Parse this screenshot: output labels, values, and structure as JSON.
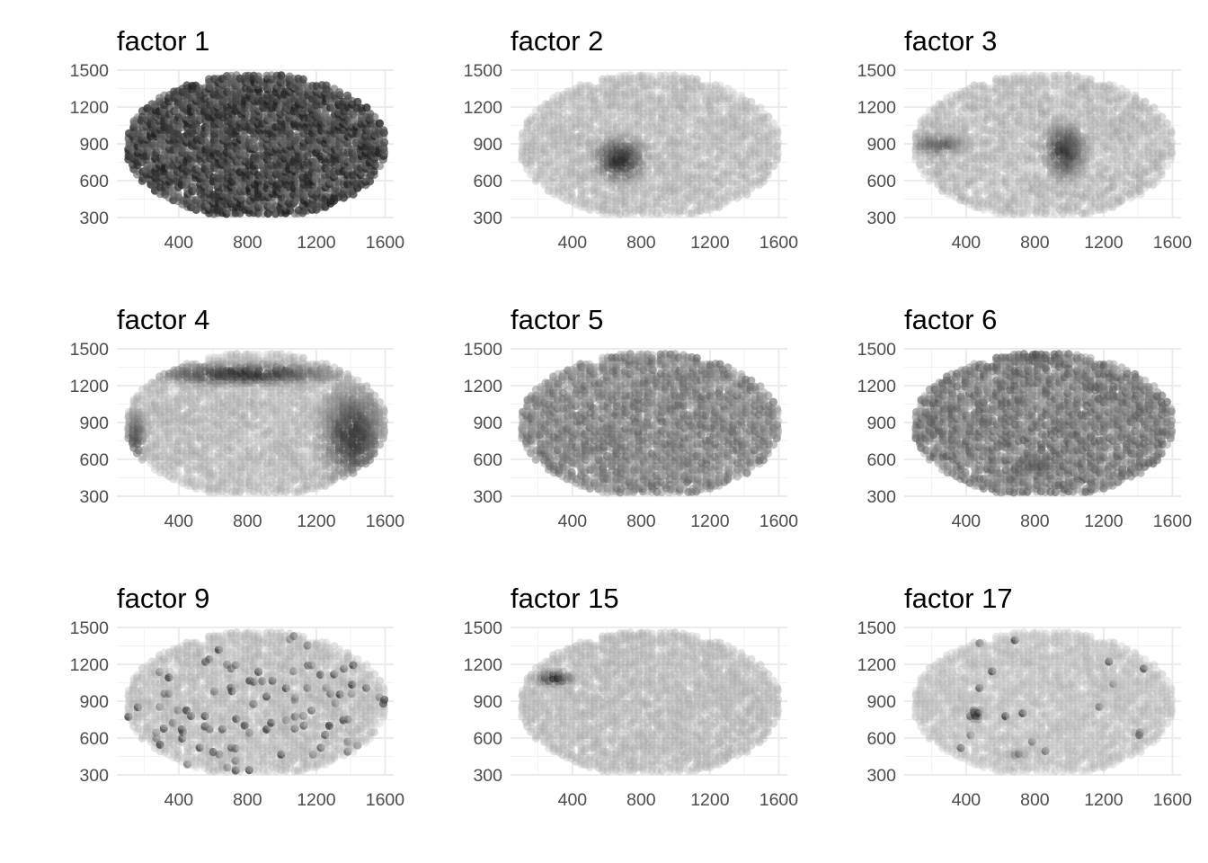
{
  "chart_data": {
    "type": "scatter",
    "layout": "3x3 facet grid",
    "grid": true,
    "colors": {
      "background": "#ffffff",
      "grid_major": "#ebebeb",
      "grid_minor": "#f2f2f2",
      "tick_text": "#4d4d4d",
      "point_low": "#bfbfbf",
      "point_high": "#1a1a1a"
    },
    "xlim": [
      40,
      1650
    ],
    "ylim": [
      300,
      1500
    ],
    "x_ticks": [
      400,
      800,
      1200,
      1600
    ],
    "y_ticks": [
      300,
      600,
      900,
      1200,
      1500
    ],
    "xlabel": "",
    "ylabel": "",
    "point_domain": {
      "description": "same spatial spot coordinates in every panel (sagittal brain section); point shade encodes factor loading (dark = high)",
      "x_range": [
        100,
        1610
      ],
      "y_range": [
        330,
        1480
      ]
    },
    "panels": [
      {
        "title": "factor  1",
        "background_level": 0.72,
        "noise": 0.25,
        "hotspots": []
      },
      {
        "title": "factor  2",
        "background_level": 0.08,
        "noise": 0.12,
        "hotspots": [
          {
            "x": 680,
            "y": 780,
            "rx": 160,
            "ry": 190,
            "level": 0.85
          }
        ]
      },
      {
        "title": "factor  3",
        "background_level": 0.08,
        "noise": 0.14,
        "hotspots": [
          {
            "x": 980,
            "y": 850,
            "rx": 130,
            "ry": 240,
            "level": 0.8
          },
          {
            "x": 250,
            "y": 900,
            "rx": 180,
            "ry": 90,
            "level": 0.6
          }
        ]
      },
      {
        "title": "factor  4",
        "background_level": 0.1,
        "noise": 0.12,
        "hotspots": [
          {
            "x": 780,
            "y": 1300,
            "rx": 600,
            "ry": 90,
            "level": 0.85
          },
          {
            "x": 1420,
            "y": 800,
            "rx": 200,
            "ry": 430,
            "level": 0.8
          },
          {
            "x": 150,
            "y": 780,
            "rx": 70,
            "ry": 250,
            "level": 0.65
          }
        ]
      },
      {
        "title": "factor  5",
        "background_level": 0.38,
        "noise": 0.2,
        "hotspots": []
      },
      {
        "title": "factor  6",
        "background_level": 0.42,
        "noise": 0.22,
        "hotspots": [
          {
            "x": 800,
            "y": 1440,
            "rx": 250,
            "ry": 60,
            "level": 0.7
          },
          {
            "x": 800,
            "y": 560,
            "rx": 200,
            "ry": 110,
            "level": 0.65
          }
        ]
      },
      {
        "title": "factor  9",
        "background_level": 0.08,
        "noise": 0.1,
        "sparse_dark": 0.05,
        "hotspots": []
      },
      {
        "title": "factor  15",
        "background_level": 0.1,
        "noise": 0.08,
        "hotspots": [
          {
            "x": 300,
            "y": 1090,
            "rx": 110,
            "ry": 60,
            "level": 0.9
          }
        ]
      },
      {
        "title": "factor  17",
        "background_level": 0.06,
        "noise": 0.08,
        "sparse_dark": 0.01,
        "hotspots": [
          {
            "x": 460,
            "y": 800,
            "rx": 40,
            "ry": 60,
            "level": 0.9
          },
          {
            "x": 1410,
            "y": 630,
            "rx": 30,
            "ry": 40,
            "level": 0.7
          },
          {
            "x": 700,
            "y": 470,
            "rx": 60,
            "ry": 30,
            "level": 0.6
          }
        ]
      }
    ]
  }
}
